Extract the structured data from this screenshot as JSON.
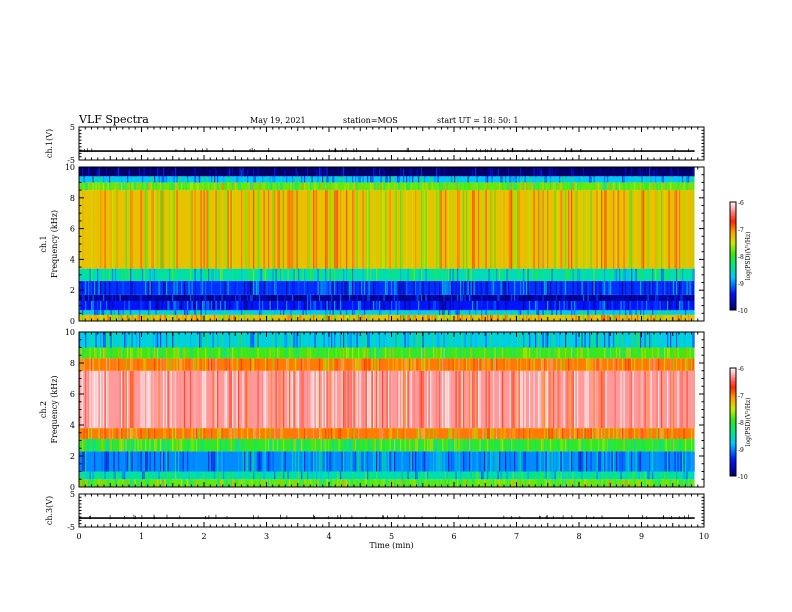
{
  "header": {
    "title": "VLF Spectra",
    "date": "May 19, 2021",
    "station": "station=MOS",
    "start": "start UT =  18: 50: 1"
  },
  "chart_data": {
    "type": "heatmap",
    "x_axis": {
      "label": "Time (min)",
      "range": [
        0,
        10
      ],
      "ticks": [
        "0",
        "1",
        "2",
        "3",
        "4",
        "5",
        "6",
        "7",
        "8",
        "9",
        "10"
      ]
    },
    "panels": [
      {
        "name": "ch.1 waveform",
        "ylabel": "ch.1(V)",
        "ylim": [
          -5,
          5
        ],
        "yticks": [
          "5",
          "-5"
        ],
        "signal_level": -2.3
      },
      {
        "name": "ch.1 spectrogram",
        "ylabel_top": "ch.1",
        "ylabel": "Frequency (kHz)",
        "ylim": [
          0,
          10
        ],
        "yticks": [
          "0",
          "2",
          "4",
          "6",
          "8",
          "10"
        ],
        "data_end_min": 9.85,
        "bands": [
          {
            "kHz": [
              0.0,
              0.4
            ],
            "level": -7.3
          },
          {
            "kHz": [
              0.4,
              0.7
            ],
            "level": -8.7
          },
          {
            "kHz": [
              0.7,
              1.3
            ],
            "level": -9.4
          },
          {
            "kHz": [
              1.3,
              1.7
            ],
            "level": -9.8
          },
          {
            "kHz": [
              1.7,
              2.6
            ],
            "level": -9.3
          },
          {
            "kHz": [
              2.6,
              3.4
            ],
            "level": -8.5
          },
          {
            "kHz": [
              3.4,
              8.5
            ],
            "level": -7.3
          },
          {
            "kHz": [
              8.5,
              9.0
            ],
            "level": -7.8
          },
          {
            "kHz": [
              9.0,
              9.4
            ],
            "level": -8.8
          },
          {
            "kHz": [
              9.4,
              10.0
            ],
            "level": -10.0
          }
        ],
        "colorbar": {
          "label": "log(PSD)(V²/Hz)",
          "range": [
            -10,
            -6
          ],
          "ticks": [
            "-6",
            "-7",
            "-8",
            "-9",
            "-10"
          ]
        }
      },
      {
        "name": "ch.2 spectrogram",
        "ylabel_top": "ch.2",
        "ylabel": "Frequency (kHz)",
        "ylim": [
          0,
          10
        ],
        "yticks": [
          "0",
          "2",
          "4",
          "6",
          "8",
          "10"
        ],
        "data_end_min": 9.85,
        "bands": [
          {
            "kHz": [
              0.0,
              0.5
            ],
            "level": -7.8
          },
          {
            "kHz": [
              0.5,
              1.0
            ],
            "level": -8.5
          },
          {
            "kHz": [
              1.0,
              2.3
            ],
            "level": -9.0
          },
          {
            "kHz": [
              2.3,
              3.1
            ],
            "level": -8.0
          },
          {
            "kHz": [
              3.1,
              3.8
            ],
            "level": -7.0
          },
          {
            "kHz": [
              3.8,
              7.5
            ],
            "level": -6.3
          },
          {
            "kHz": [
              7.5,
              8.3
            ],
            "level": -7.0
          },
          {
            "kHz": [
              8.3,
              9.0
            ],
            "level": -7.9
          },
          {
            "kHz": [
              9.0,
              10.0
            ],
            "level": -8.7
          }
        ],
        "colorbar": {
          "label": "log(PSD)(V²/Hz)",
          "range": [
            -10,
            -6
          ],
          "ticks": [
            "-6",
            "-7",
            "-8",
            "-9",
            "-10"
          ]
        }
      },
      {
        "name": "ch.3 waveform",
        "ylabel": "ch.3(V)",
        "ylim": [
          -5,
          5
        ],
        "yticks": [
          "5",
          "-5"
        ],
        "signal_level": -2.3
      }
    ]
  }
}
